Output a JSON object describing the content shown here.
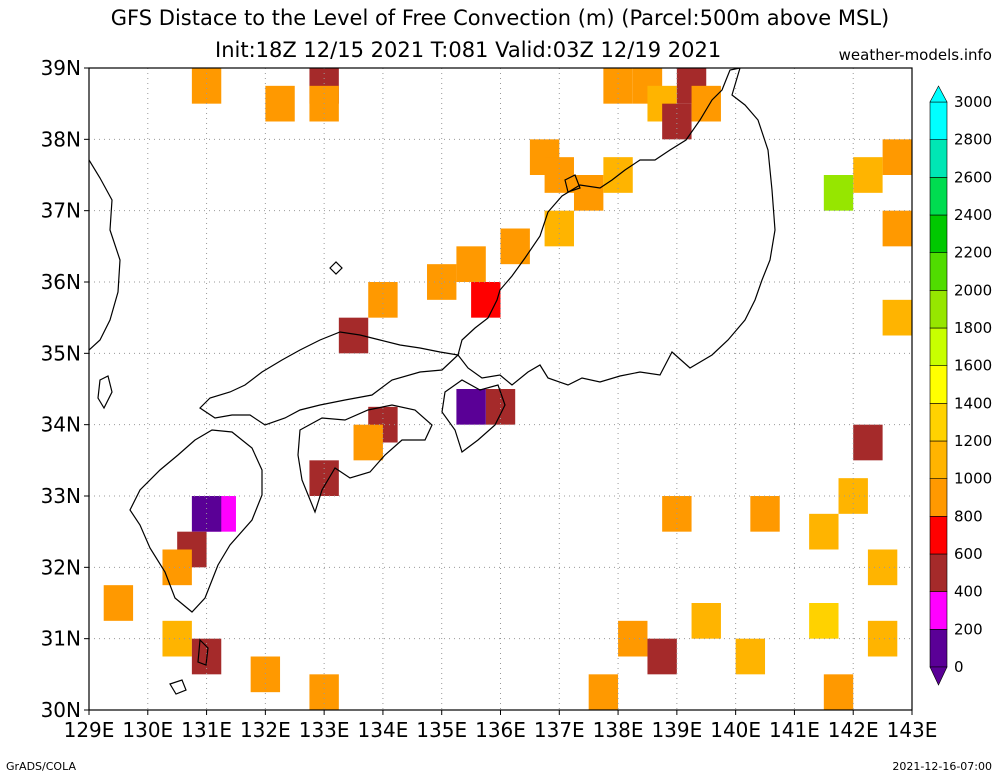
{
  "header": {
    "title": "GFS Distace to the Level of Free Convection (m) (Parcel:500m above MSL)",
    "subtitle": "Init:18Z 12/15 2021 T:081 Valid:03Z 12/19 2021",
    "site": "weather-models.info"
  },
  "footer": {
    "left": "GrADS/COLA",
    "right": "2021-12-16-07:00"
  },
  "map": {
    "lon_min": 129,
    "lon_max": 143,
    "lat_min": 30,
    "lat_max": 39,
    "lat_labels": [
      "30N",
      "31N",
      "32N",
      "33N",
      "34N",
      "35N",
      "36N",
      "37N",
      "38N",
      "39N"
    ],
    "lon_labels": [
      "129E",
      "130E",
      "131E",
      "132E",
      "133E",
      "134E",
      "135E",
      "136E",
      "137E",
      "138E",
      "139E",
      "140E",
      "141E",
      "142E",
      "143E"
    ]
  },
  "colorbar": {
    "levels": [
      "0",
      "200",
      "400",
      "600",
      "800",
      "1000",
      "1200",
      "1400",
      "1600",
      "1800",
      "2000",
      "2200",
      "2400",
      "2600",
      "2800",
      "3000"
    ],
    "colors": [
      "#5a0096",
      "#ff00ff",
      "#a52a2a",
      "#ff0000",
      "#ff9900",
      "#ffb400",
      "#ffd200",
      "#ffff00",
      "#c8ff00",
      "#96e600",
      "#50dc00",
      "#00c800",
      "#00dc50",
      "#00e6b4",
      "#00ffff"
    ]
  },
  "field_cells": [
    {
      "lon": 131.0,
      "lat": 38.75,
      "v": 900
    },
    {
      "lon": 132.25,
      "lat": 38.5,
      "v": 900
    },
    {
      "lon": 133.0,
      "lat": 38.75,
      "v": 500
    },
    {
      "lon": 133.0,
      "lat": 38.5,
      "v": 900
    },
    {
      "lon": 136.75,
      "lat": 37.75,
      "v": 900
    },
    {
      "lon": 137.0,
      "lat": 37.5,
      "v": 900
    },
    {
      "lon": 137.5,
      "lat": 37.25,
      "v": 900
    },
    {
      "lon": 138.0,
      "lat": 37.5,
      "v": 1000
    },
    {
      "lon": 138.5,
      "lat": 38.75,
      "v": 900
    },
    {
      "lon": 138.75,
      "lat": 38.5,
      "v": 1000
    },
    {
      "lon": 139.0,
      "lat": 38.25,
      "v": 500
    },
    {
      "lon": 139.25,
      "lat": 38.75,
      "v": 500
    },
    {
      "lon": 139.5,
      "lat": 38.5,
      "v": 900
    },
    {
      "lon": 138.0,
      "lat": 38.75,
      "v": 900
    },
    {
      "lon": 137.0,
      "lat": 36.75,
      "v": 1000
    },
    {
      "lon": 136.25,
      "lat": 36.5,
      "v": 900
    },
    {
      "lon": 135.5,
      "lat": 36.25,
      "v": 900
    },
    {
      "lon": 135.0,
      "lat": 36.0,
      "v": 900
    },
    {
      "lon": 134.0,
      "lat": 35.75,
      "v": 900
    },
    {
      "lon": 135.75,
      "lat": 35.75,
      "v": 700
    },
    {
      "lon": 133.5,
      "lat": 35.25,
      "v": 500
    },
    {
      "lon": 136.0,
      "lat": 34.25,
      "v": 450
    },
    {
      "lon": 135.5,
      "lat": 34.25,
      "v": 150
    },
    {
      "lon": 134.0,
      "lat": 34.0,
      "v": 500
    },
    {
      "lon": 133.75,
      "lat": 33.75,
      "v": 900
    },
    {
      "lon": 133.0,
      "lat": 33.25,
      "v": 400
    },
    {
      "lon": 131.25,
      "lat": 32.75,
      "v": 350
    },
    {
      "lon": 131.0,
      "lat": 32.75,
      "v": 150
    },
    {
      "lon": 130.75,
      "lat": 32.25,
      "v": 450
    },
    {
      "lon": 130.5,
      "lat": 32.0,
      "v": 900
    },
    {
      "lon": 129.5,
      "lat": 31.5,
      "v": 900
    },
    {
      "lon": 130.5,
      "lat": 31.0,
      "v": 1000
    },
    {
      "lon": 131.0,
      "lat": 30.75,
      "v": 500
    },
    {
      "lon": 132.0,
      "lat": 30.5,
      "v": 900
    },
    {
      "lon": 133.0,
      "lat": 30.25,
      "v": 900
    },
    {
      "lon": 142.25,
      "lat": 33.75,
      "v": 400
    },
    {
      "lon": 142.0,
      "lat": 33.0,
      "v": 1000
    },
    {
      "lon": 141.5,
      "lat": 32.5,
      "v": 1000
    },
    {
      "lon": 142.5,
      "lat": 32.0,
      "v": 1100
    },
    {
      "lon": 141.5,
      "lat": 31.25,
      "v": 1200
    },
    {
      "lon": 142.5,
      "lat": 31.0,
      "v": 1000
    },
    {
      "lon": 140.5,
      "lat": 32.75,
      "v": 900
    },
    {
      "lon": 139.0,
      "lat": 32.75,
      "v": 900
    },
    {
      "lon": 138.25,
      "lat": 31.0,
      "v": 900
    },
    {
      "lon": 138.75,
      "lat": 30.75,
      "v": 500
    },
    {
      "lon": 139.5,
      "lat": 31.25,
      "v": 1000
    },
    {
      "lon": 140.25,
      "lat": 30.75,
      "v": 1000
    },
    {
      "lon": 137.75,
      "lat": 30.25,
      "v": 900
    },
    {
      "lon": 141.75,
      "lat": 30.25,
      "v": 900
    },
    {
      "lon": 142.75,
      "lat": 37.75,
      "v": 900
    },
    {
      "lon": 142.25,
      "lat": 37.5,
      "v": 1000
    },
    {
      "lon": 141.75,
      "lat": 37.25,
      "v": 1800
    },
    {
      "lon": 142.75,
      "lat": 36.75,
      "v": 900
    },
    {
      "lon": 142.75,
      "lat": 35.5,
      "v": 1000
    }
  ]
}
